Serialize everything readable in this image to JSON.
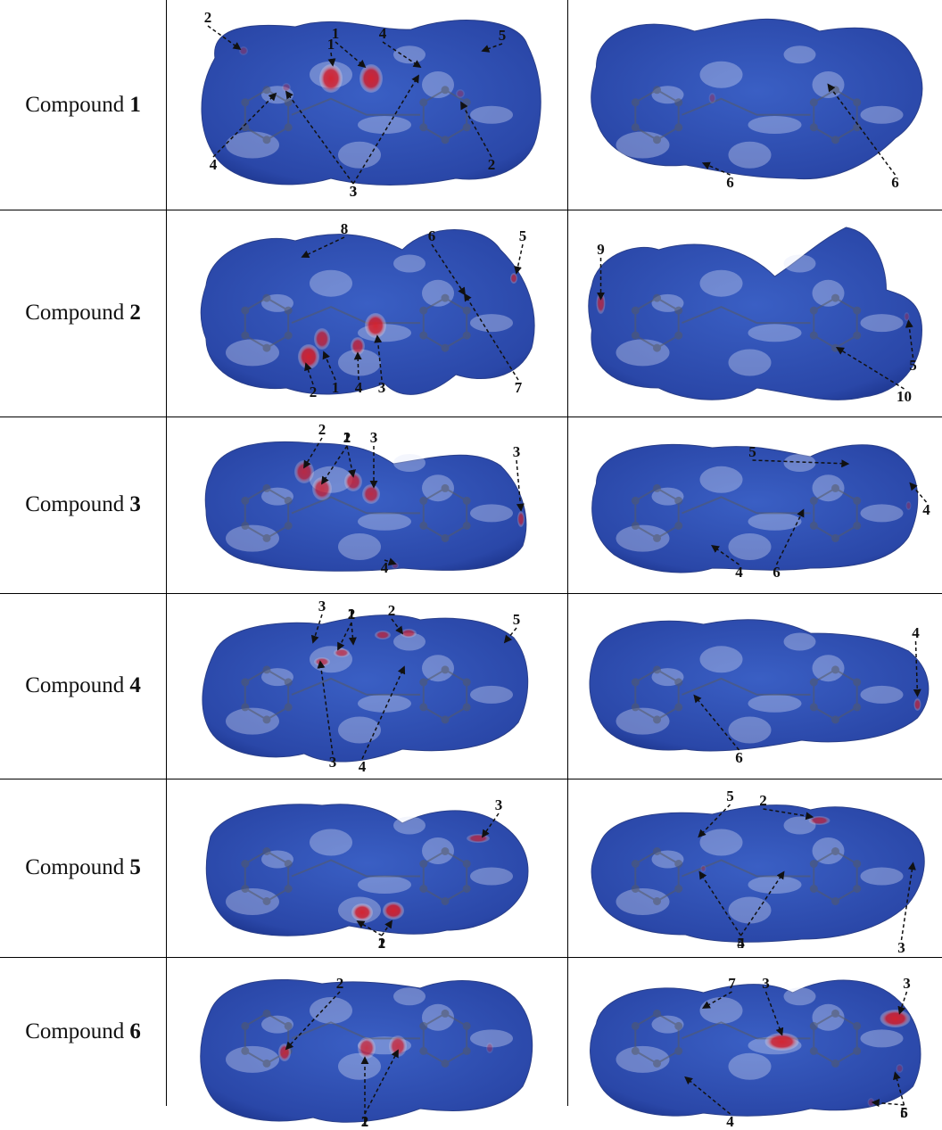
{
  "rows": [
    {
      "label_prefix": "Compound",
      "label_number": "1",
      "left_panel": {
        "spots": [
          {
            "size": "large"
          },
          {
            "size": "large"
          },
          {
            "size": "faint"
          },
          {
            "size": "faint"
          },
          {
            "size": "faint"
          }
        ],
        "annotations": [
          "1",
          "1",
          "2",
          "2",
          "3",
          "3",
          "4",
          "4",
          "5"
        ]
      },
      "right_panel": {
        "spots": [
          {
            "size": "faint"
          }
        ],
        "annotations": [
          "6",
          "6"
        ]
      }
    },
    {
      "label_prefix": "Compound",
      "label_number": "2",
      "left_panel": {
        "spots": [
          {
            "size": "large"
          },
          {
            "size": "medium"
          },
          {
            "size": "medium"
          },
          {
            "size": "large"
          },
          {
            "size": "small"
          }
        ],
        "annotations": [
          "1",
          "2",
          "3",
          "4",
          "5",
          "6",
          "7",
          "8"
        ]
      },
      "right_panel": {
        "spots": [
          {
            "size": "small"
          },
          {
            "size": "faint"
          }
        ],
        "annotations": [
          "5",
          "9",
          "10"
        ]
      }
    },
    {
      "label_prefix": "Compound",
      "label_number": "3",
      "left_panel": {
        "spots": [
          {
            "size": "medium"
          },
          {
            "size": "medium"
          },
          {
            "size": "medium"
          },
          {
            "size": "medium"
          },
          {
            "size": "small"
          },
          {
            "size": "faint"
          }
        ],
        "annotations": [
          "1",
          "2",
          "2",
          "3",
          "3",
          "4"
        ]
      },
      "right_panel": {
        "spots": [
          {
            "size": "faint"
          }
        ],
        "annotations": [
          "4",
          "4",
          "5",
          "6"
        ]
      }
    },
    {
      "label_prefix": "Compound",
      "label_number": "4",
      "left_panel": {
        "spots": [
          {
            "size": "small"
          },
          {
            "size": "small"
          },
          {
            "size": "small"
          },
          {
            "size": "small"
          }
        ],
        "annotations": [
          "1",
          "2",
          "2",
          "3",
          "3",
          "4",
          "5"
        ]
      },
      "right_panel": {
        "spots": [
          {
            "size": "small"
          }
        ],
        "annotations": [
          "4",
          "6"
        ]
      }
    },
    {
      "label_prefix": "Compound",
      "label_number": "5",
      "left_panel": {
        "spots": [
          {
            "size": "small"
          },
          {
            "size": "large"
          },
          {
            "size": "large"
          }
        ],
        "annotations": [
          "1",
          "2",
          "3"
        ]
      },
      "right_panel": {
        "spots": [
          {
            "size": "small"
          },
          {
            "size": "faint"
          }
        ],
        "annotations": [
          "2",
          "3",
          "4",
          "5",
          "5"
        ]
      }
    },
    {
      "label_prefix": "Compound",
      "label_number": "6",
      "left_panel": {
        "spots": [
          {
            "size": "medium"
          },
          {
            "size": "medium"
          },
          {
            "size": "medium"
          },
          {
            "size": "faint"
          }
        ],
        "annotations": [
          "1",
          "2",
          "2"
        ]
      },
      "right_panel": {
        "spots": [
          {
            "size": "large"
          },
          {
            "size": "large"
          },
          {
            "size": "faint"
          },
          {
            "size": "faint"
          }
        ],
        "annotations": [
          "3",
          "3",
          "4",
          "5",
          "6",
          "7"
        ]
      }
    }
  ],
  "colors": {
    "surface_blue": "#3a5fc4",
    "surface_dark": "#2a47a8",
    "white_patch": "#dfe6f8",
    "red_spot": "#d8202a",
    "molecule": "#555a66"
  }
}
